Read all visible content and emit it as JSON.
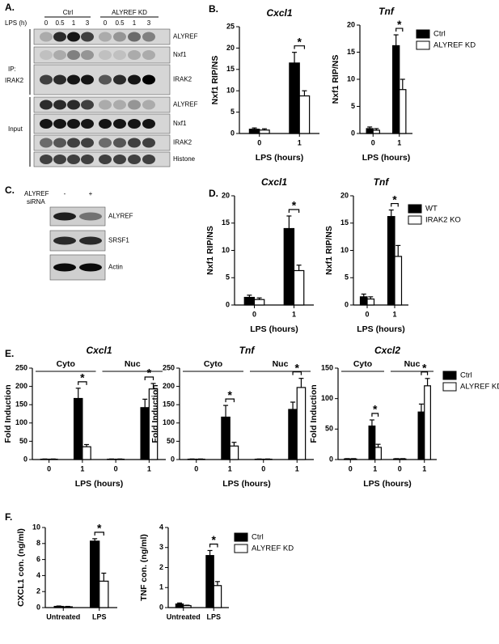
{
  "panel_labels": [
    "A.",
    "B.",
    "C.",
    "D.",
    "E.",
    "F."
  ],
  "blot_a": {
    "lps_label": "LPS (h)",
    "lanes": [
      "0",
      "0.5",
      "1",
      "3",
      "0",
      "0.5",
      "1",
      "3"
    ],
    "groups": [
      "Ctrl",
      "ALYREF KD"
    ],
    "ip_label": "IP:",
    "ip_target": "IRAK2",
    "input_label": "Input",
    "rows": [
      "ALYREF",
      "Nxf1",
      "IRAK2",
      "ALYREF",
      "Nxf1",
      "IRAK2",
      "Histone"
    ]
  },
  "blot_c": {
    "treatment": "ALYREF",
    "treatment_sub": "siRNA",
    "lanes": [
      "-",
      "+"
    ],
    "rows": [
      "ALYREF",
      "SRSF1",
      "Actin"
    ]
  },
  "chart_data": [
    {
      "type": "bar",
      "title": "Cxcl1",
      "xlabel": "LPS (hours)",
      "ylabel": "Nxf1 RIP/NS",
      "categories": [
        "0",
        "1"
      ],
      "series": [
        {
          "color": "#000000",
          "values": [
            1,
            16.5
          ],
          "errors": [
            0.3,
            2.5
          ]
        },
        {
          "color": "#ffffff",
          "values": [
            0.8,
            8.8
          ],
          "errors": [
            0.3,
            1.2
          ]
        }
      ],
      "ylim": [
        0,
        25
      ],
      "yticks": [
        0,
        5,
        10,
        15,
        20,
        25
      ],
      "annotations": [
        null,
        "*"
      ]
    },
    {
      "type": "bar",
      "title": "Tnf",
      "xlabel": "LPS (hours)",
      "ylabel": "Nxf1 RIP/NS",
      "categories": [
        "0",
        "1"
      ],
      "series": [
        {
          "name": "Ctrl",
          "color": "#000000",
          "values": [
            0.9,
            16.2
          ],
          "errors": [
            0.3,
            2
          ]
        },
        {
          "name": "ALYREF KD",
          "color": "#ffffff",
          "values": [
            0.6,
            8.1
          ],
          "errors": [
            0.3,
            1.9
          ]
        }
      ],
      "ylim": [
        0,
        20
      ],
      "yticks": [
        0,
        5,
        10,
        15,
        20
      ],
      "annotations": [
        null,
        "*"
      ],
      "legend": "right"
    },
    {
      "type": "bar",
      "title": "Cxcl1",
      "xlabel": "LPS (hours)",
      "ylabel": "Nxf1 RIP/NS",
      "categories": [
        "0",
        "1"
      ],
      "series": [
        {
          "color": "#000000",
          "values": [
            1.4,
            14
          ],
          "errors": [
            0.4,
            2.3
          ]
        },
        {
          "color": "#ffffff",
          "values": [
            1,
            6.3
          ],
          "errors": [
            0.3,
            1
          ]
        }
      ],
      "ylim": [
        0,
        20
      ],
      "yticks": [
        0,
        5,
        10,
        15,
        20
      ],
      "annotations": [
        null,
        "*"
      ]
    },
    {
      "type": "bar",
      "title": "Tnf",
      "xlabel": "LPS (hours)",
      "ylabel": "Nxf1 RIP/NS",
      "categories": [
        "0",
        "1"
      ],
      "series": [
        {
          "name": "WT",
          "color": "#000000",
          "values": [
            1.5,
            16.2
          ],
          "errors": [
            0.5,
            1.2
          ]
        },
        {
          "name": "IRAK2 KO",
          "color": "#ffffff",
          "values": [
            1.1,
            8.9
          ],
          "errors": [
            0.4,
            2
          ]
        }
      ],
      "ylim": [
        0,
        20
      ],
      "yticks": [
        0,
        5,
        10,
        15,
        20
      ],
      "annotations": [
        null,
        "*"
      ],
      "legend": "right"
    },
    {
      "type": "bar",
      "title": "Cxcl1",
      "xlabel": "LPS (hours)",
      "ylabel": "Fold Induction",
      "categories": [
        "0",
        "1",
        "0",
        "1"
      ],
      "groups": [
        "Cyto",
        "Nuc"
      ],
      "series": [
        {
          "color": "#000000",
          "values": [
            1,
            167,
            1,
            142
          ],
          "errors": [
            0.5,
            28,
            0.5,
            23
          ]
        },
        {
          "color": "#ffffff",
          "values": [
            1,
            35,
            1,
            193
          ],
          "errors": [
            0.5,
            6,
            0.5,
            15
          ]
        }
      ],
      "ylim": [
        0,
        250
      ],
      "yticks": [
        0,
        50,
        100,
        150,
        200,
        250
      ],
      "annotations": [
        null,
        "*",
        null,
        "*"
      ]
    },
    {
      "type": "bar",
      "title": "Tnf",
      "xlabel": "LPS (hours)",
      "ylabel": "Fold Induction",
      "categories": [
        "0",
        "1",
        "0",
        "1"
      ],
      "groups": [
        "Cyto",
        "Nuc"
      ],
      "series": [
        {
          "color": "#000000",
          "values": [
            1,
            116,
            1,
            137
          ],
          "errors": [
            0.5,
            32,
            0.5,
            20
          ]
        },
        {
          "color": "#ffffff",
          "values": [
            1,
            37,
            1,
            197
          ],
          "errors": [
            0.5,
            10,
            0.5,
            25
          ]
        }
      ],
      "ylim": [
        0,
        250
      ],
      "yticks": [
        0,
        50,
        100,
        150,
        200,
        250
      ],
      "annotations": [
        null,
        "*",
        null,
        "*"
      ]
    },
    {
      "type": "bar",
      "title": "Cxcl2",
      "xlabel": "LPS (hours)",
      "ylabel": "Fold Induction",
      "categories": [
        "0",
        "1",
        "0",
        "1"
      ],
      "groups": [
        "Cyto",
        "Nuc"
      ],
      "series": [
        {
          "name": "Ctrl",
          "color": "#000000",
          "values": [
            1,
            55,
            1,
            78
          ],
          "errors": [
            0.5,
            10,
            0.5,
            13
          ]
        },
        {
          "name": "ALYREF KD",
          "color": "#ffffff",
          "values": [
            1,
            20,
            1,
            121
          ],
          "errors": [
            0.5,
            5,
            0.5,
            12
          ]
        }
      ],
      "ylim": [
        0,
        150
      ],
      "yticks": [
        0,
        50,
        100,
        150
      ],
      "annotations": [
        null,
        "*",
        null,
        "*"
      ],
      "legend": "right"
    },
    {
      "type": "bar",
      "ylabel": "CXCL1 con. (ng/ml)",
      "categories": [
        "Untreated",
        "LPS"
      ],
      "series": [
        {
          "color": "#000000",
          "values": [
            0.15,
            8.3
          ],
          "errors": [
            0.05,
            0.3
          ]
        },
        {
          "color": "#ffffff",
          "values": [
            0.1,
            3.3
          ],
          "errors": [
            0.05,
            1
          ]
        }
      ],
      "ylim": [
        0,
        10
      ],
      "yticks": [
        0,
        2,
        4,
        6,
        8,
        10
      ],
      "annotations": [
        null,
        "*"
      ]
    },
    {
      "type": "bar",
      "ylabel": "TNF con. (ng/ml)",
      "categories": [
        "Untreated",
        "LPS"
      ],
      "series": [
        {
          "name": "Ctrl",
          "color": "#000000",
          "values": [
            0.18,
            2.6
          ],
          "errors": [
            0.05,
            0.25
          ]
        },
        {
          "name": "ALYREF KD",
          "color": "#ffffff",
          "values": [
            0.1,
            1.1
          ],
          "errors": [
            0.02,
            0.2
          ]
        }
      ],
      "ylim": [
        0,
        4
      ],
      "yticks": [
        0,
        1,
        2,
        3,
        4
      ],
      "annotations": [
        null,
        "*"
      ],
      "legend": "right"
    }
  ]
}
